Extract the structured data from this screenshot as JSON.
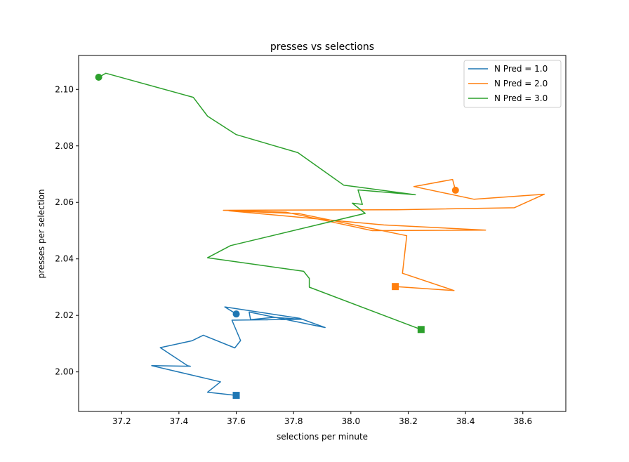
{
  "chart_data": {
    "type": "line",
    "title": "presses vs selections",
    "xlabel": "selections per minute",
    "ylabel": "presses per selection",
    "xlim": [
      37.05,
      38.75
    ],
    "ylim": [
      1.986,
      2.112
    ],
    "xticks": [
      37.2,
      37.4,
      37.6,
      37.8,
      38.0,
      38.2,
      38.4,
      38.6
    ],
    "xtick_labels": [
      "37.2",
      "37.4",
      "37.6",
      "37.8",
      "38.0",
      "38.2",
      "38.4",
      "38.6"
    ],
    "yticks": [
      2.0,
      2.02,
      2.04,
      2.06,
      2.08,
      2.1
    ],
    "ytick_labels": [
      "2.00",
      "2.02",
      "2.04",
      "2.06",
      "2.08",
      "2.10"
    ],
    "grid": false,
    "legend_position": "top-right",
    "start_marker": "circle",
    "end_marker": "square",
    "series": [
      {
        "name": "N Pred = 1.0",
        "color": "#1f77b4",
        "points": [
          [
            37.6,
            2.0205
          ],
          [
            37.56,
            2.023
          ],
          [
            37.82,
            2.019
          ],
          [
            37.91,
            2.0157
          ],
          [
            37.645,
            2.0212
          ],
          [
            37.65,
            2.0185
          ],
          [
            37.73,
            2.0193
          ],
          [
            37.83,
            2.0186
          ],
          [
            37.585,
            2.0183
          ],
          [
            37.615,
            2.0111
          ],
          [
            37.595,
            2.0085
          ],
          [
            37.485,
            2.013
          ],
          [
            37.445,
            2.011
          ],
          [
            37.335,
            2.0086
          ],
          [
            37.43,
            2.0022
          ],
          [
            37.44,
            2.002
          ],
          [
            37.305,
            2.0022
          ],
          [
            37.545,
            1.9965
          ],
          [
            37.5,
            1.9928
          ],
          [
            37.6,
            1.9917
          ]
        ]
      },
      {
        "name": "N Pred = 2.0",
        "color": "#ff7f0e",
        "points": [
          [
            38.365,
            2.0643
          ],
          [
            38.355,
            2.0681
          ],
          [
            38.22,
            2.0656
          ],
          [
            38.43,
            2.0611
          ],
          [
            38.675,
            2.0629
          ],
          [
            38.57,
            2.0581
          ],
          [
            38.16,
            2.0574
          ],
          [
            37.555,
            2.0572
          ],
          [
            37.775,
            2.0565
          ],
          [
            38.075,
            2.05
          ],
          [
            38.47,
            2.0502
          ],
          [
            38.115,
            2.052
          ],
          [
            37.575,
            2.057
          ],
          [
            37.82,
            2.056
          ],
          [
            38.195,
            2.0482
          ],
          [
            38.18,
            2.0349
          ],
          [
            38.36,
            2.0288
          ],
          [
            38.155,
            2.0302
          ]
        ]
      },
      {
        "name": "N Pred = 3.0",
        "color": "#2ca02c",
        "points": [
          [
            37.12,
            2.1043
          ],
          [
            37.145,
            2.1057
          ],
          [
            37.45,
            2.0972
          ],
          [
            37.5,
            2.0905
          ],
          [
            37.6,
            2.084
          ],
          [
            37.815,
            2.0776
          ],
          [
            37.975,
            2.0661
          ],
          [
            38.225,
            2.0627
          ],
          [
            38.025,
            2.0644
          ],
          [
            38.04,
            2.0593
          ],
          [
            38.005,
            2.0597
          ],
          [
            38.05,
            2.0561
          ],
          [
            37.58,
            2.0447
          ],
          [
            37.5,
            2.0404
          ],
          [
            37.835,
            2.0356
          ],
          [
            37.855,
            2.0331
          ],
          [
            37.855,
            2.03
          ],
          [
            38.245,
            2.015
          ]
        ]
      }
    ]
  }
}
